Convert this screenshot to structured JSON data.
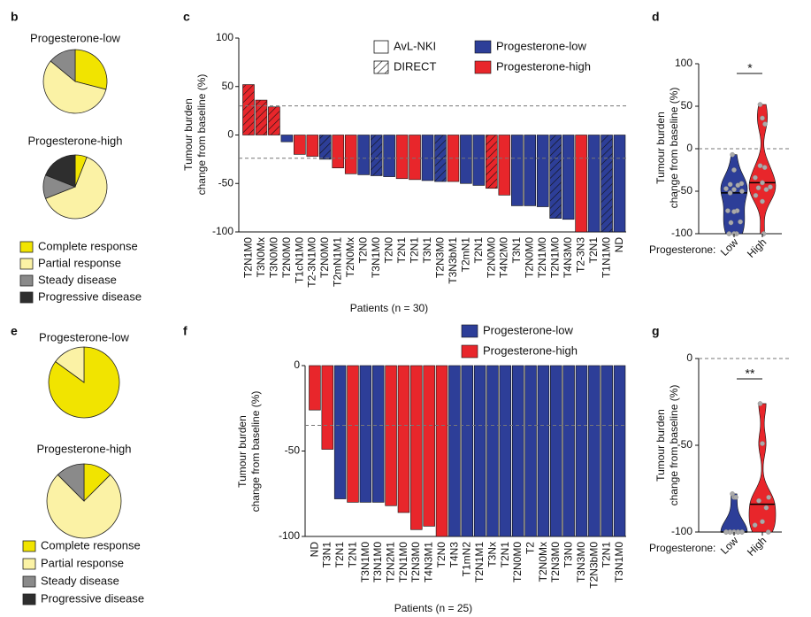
{
  "chart_data": [
    {
      "type": "pie",
      "panel": "b",
      "categories": [
        "Complete response",
        "Partial response",
        "Steady disease",
        "Progressive disease"
      ],
      "colors": [
        "#f1e400",
        "#fbf2a5",
        "#8a8a8a",
        "#2e2e2e"
      ],
      "pies": [
        {
          "title": "Progesterone-low",
          "values": [
            29,
            57,
            14,
            0
          ]
        },
        {
          "title": "Progesterone-high",
          "values": [
            6,
            63,
            12,
            19
          ]
        }
      ]
    },
    {
      "type": "bar",
      "panel": "c",
      "y_label": [
        "Tumour burden",
        "change from baseline (%)"
      ],
      "x_label": "Patients (n = 30)",
      "categories": [
        "T2N1M0",
        "T3N0Mx",
        "T3N0M0",
        "T2N0M0",
        "T1cN1M0",
        "T2-3N1M0",
        "T2N0M0",
        "T2mN1M1",
        "T2N0Mx",
        "T2N0",
        "T3N1M0",
        "T2N0",
        "T2N1",
        "T2N1",
        "T3N1",
        "T2N3M0",
        "T3N3bM1",
        "T2mN1",
        "T2N1",
        "T2N0M0",
        "T4N2M0",
        "T3N1",
        "T2N0M0",
        "T2N1M0",
        "T2N1M0",
        "T4N3M0",
        "T2-3N3",
        "T2N1",
        "T1N1M0",
        "ND"
      ],
      "values": [
        52,
        36,
        29,
        -7,
        -20,
        -22,
        -25,
        -34,
        -40,
        -41,
        -42,
        -43,
        -45,
        -46,
        -47,
        -48,
        -48,
        -50,
        -52,
        -55,
        -62,
        -73,
        -73,
        -74,
        -86,
        -87,
        -100,
        -100,
        -100,
        -100
      ],
      "groups": [
        "Progesterone-high",
        "Progesterone-high",
        "Progesterone-high",
        "Progesterone-low",
        "Progesterone-high",
        "Progesterone-high",
        "Progesterone-low",
        "Progesterone-high",
        "Progesterone-high",
        "Progesterone-low",
        "Progesterone-low",
        "Progesterone-low",
        "Progesterone-high",
        "Progesterone-high",
        "Progesterone-low",
        "Progesterone-low",
        "Progesterone-high",
        "Progesterone-low",
        "Progesterone-low",
        "Progesterone-high",
        "Progesterone-high",
        "Progesterone-low",
        "Progesterone-low",
        "Progesterone-low",
        "Progesterone-low",
        "Progesterone-low",
        "Progesterone-high",
        "Progesterone-low",
        "Progesterone-low",
        "Progesterone-low"
      ],
      "cohorts": [
        "DIRECT",
        "DIRECT",
        "DIRECT",
        "AvL-NKI",
        "AvL-NKI",
        "AvL-NKI",
        "DIRECT",
        "AvL-NKI",
        "AvL-NKI",
        "AvL-NKI",
        "DIRECT",
        "AvL-NKI",
        "AvL-NKI",
        "AvL-NKI",
        "AvL-NKI",
        "DIRECT",
        "AvL-NKI",
        "AvL-NKI",
        "AvL-NKI",
        "DIRECT",
        "AvL-NKI",
        "AvL-NKI",
        "AvL-NKI",
        "AvL-NKI",
        "DIRECT",
        "AvL-NKI",
        "AvL-NKI",
        "AvL-NKI",
        "DIRECT",
        "AvL-NKI"
      ],
      "legend": [
        {
          "name": "Progesterone-low",
          "color": "#2d3e98"
        },
        {
          "name": "Progesterone-high",
          "color": "#e8262b"
        }
      ],
      "cohort_legend": [
        {
          "name": "AvL-NKI",
          "hatch": false
        },
        {
          "name": "DIRECT",
          "hatch": true
        }
      ],
      "ylim": [
        -100,
        100
      ],
      "yticks": [
        100,
        50,
        0,
        -50,
        -100
      ],
      "reference_lines": [
        30,
        -24
      ]
    },
    {
      "type": "violin",
      "panel": "d",
      "y_label": [
        "Tumour burden",
        "change from baseline (%)"
      ],
      "x_label": "Progesterone:",
      "categories": [
        "Low",
        "High"
      ],
      "colors": [
        "#2d3e98",
        "#e8262b"
      ],
      "values": [
        [
          -7,
          -25,
          -41,
          -42,
          -43,
          -47,
          -48,
          -50,
          -52,
          -73,
          -73,
          -74,
          -86,
          -87,
          -100,
          -100,
          -100
        ],
        [
          52,
          36,
          29,
          -20,
          -22,
          -34,
          -40,
          -45,
          -46,
          -48,
          -55,
          -62,
          -100
        ]
      ],
      "ylim": [
        -100,
        100
      ],
      "yticks": [
        100,
        50,
        0,
        -50,
        -100
      ],
      "reference_lines": [
        0
      ],
      "significance": "*"
    },
    {
      "type": "pie",
      "panel": "e",
      "categories": [
        "Complete response",
        "Partial response",
        "Steady disease",
        "Progressive disease"
      ],
      "colors": [
        "#f1e400",
        "#fbf2a5",
        "#8a8a8a",
        "#2e2e2e"
      ],
      "pies": [
        {
          "title": "Progesterone-low",
          "values": [
            85,
            15,
            0,
            0
          ]
        },
        {
          "title": "Progesterone-high",
          "values": [
            12.5,
            75,
            12.5,
            0
          ]
        }
      ]
    },
    {
      "type": "bar",
      "panel": "f",
      "y_label": [
        "Tumour burden",
        "change from baseline (%)"
      ],
      "x_label": "Patients (n = 25)",
      "categories": [
        "ND",
        "T3N1",
        "T2N1",
        "T2N1",
        "T3N1M0",
        "T3N1M0",
        "T2N2M1",
        "T2N1M0",
        "T2N3M0",
        "T4N3M1",
        "T2N0",
        "T4N3",
        "T1mN2",
        "T2N1M1",
        "T3Nx",
        "T2N1",
        "T2N0M0",
        "T2",
        "T2N0Mx",
        "T2N3M0",
        "T3N0",
        "T3N3M0",
        "T2N3bM0",
        "T2N1",
        "T3N1M0"
      ],
      "values": [
        -26,
        -49,
        -78,
        -80,
        -80,
        -80,
        -82,
        -86,
        -96,
        -94,
        -100,
        -100,
        -100,
        -100,
        -100,
        -100,
        -100,
        -100,
        -100,
        -100,
        -100,
        -100,
        -100,
        -100,
        -100
      ],
      "groups": [
        "Progesterone-high",
        "Progesterone-high",
        "Progesterone-low",
        "Progesterone-high",
        "Progesterone-low",
        "Progesterone-low",
        "Progesterone-high",
        "Progesterone-high",
        "Progesterone-high",
        "Progesterone-high",
        "Progesterone-high",
        "Progesterone-low",
        "Progesterone-low",
        "Progesterone-low",
        "Progesterone-low",
        "Progesterone-low",
        "Progesterone-low",
        "Progesterone-low",
        "Progesterone-low",
        "Progesterone-low",
        "Progesterone-low",
        "Progesterone-low",
        "Progesterone-low",
        "Progesterone-low",
        "Progesterone-low"
      ],
      "legend": [
        {
          "name": "Progesterone-low",
          "color": "#2d3e98"
        },
        {
          "name": "Progesterone-high",
          "color": "#e8262b"
        }
      ],
      "ylim": [
        -100,
        0
      ],
      "yticks": [
        0,
        -50,
        -100
      ],
      "reference_lines": [
        -35
      ]
    },
    {
      "type": "violin",
      "panel": "g",
      "y_label": [
        "Tumour burden",
        "change from baseline (%)"
      ],
      "x_label": "Progesterone:",
      "categories": [
        "Low",
        "High"
      ],
      "colors": [
        "#2d3e98",
        "#e8262b"
      ],
      "values": [
        [
          -78,
          -80,
          -80,
          -100,
          -100,
          -100,
          -100,
          -100,
          -100,
          -100,
          -100,
          -100,
          -100,
          -100,
          -100,
          -100,
          -100
        ],
        [
          -26,
          -49,
          -80,
          -82,
          -86,
          -96,
          -94,
          -100
        ]
      ],
      "ylim": [
        -100,
        0
      ],
      "yticks": [
        0,
        -50,
        -100
      ],
      "reference_lines": [
        0
      ],
      "significance": "**"
    }
  ]
}
